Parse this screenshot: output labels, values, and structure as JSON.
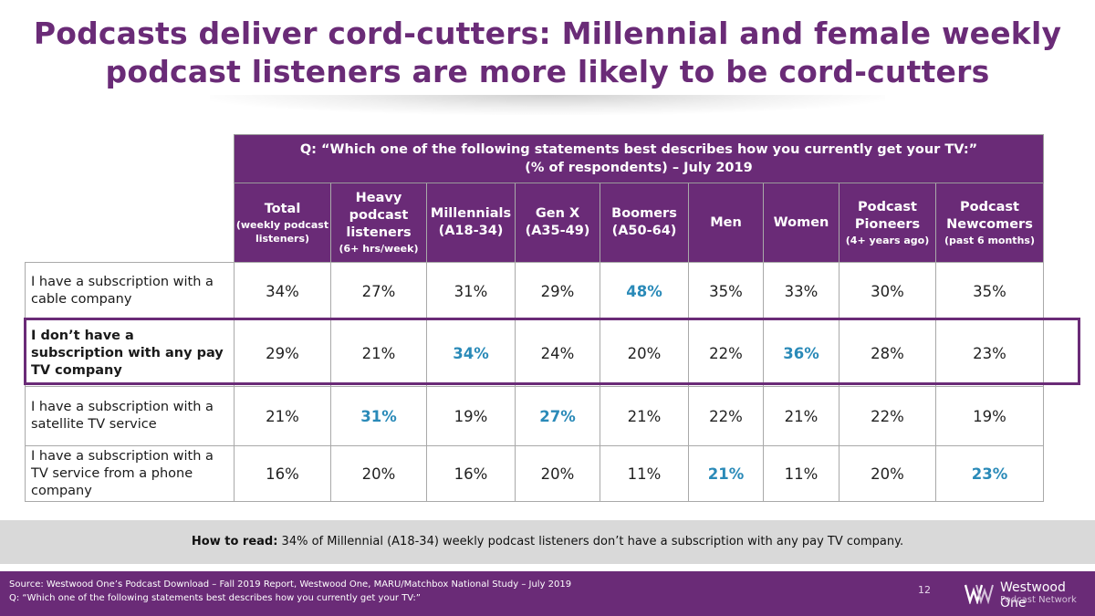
{
  "title": {
    "line1": "Podcasts deliver cord-cutters: Millennial and female weekly",
    "line2": "podcast listeners are more likely to be cord-cutters"
  },
  "question": {
    "line1": "Q: “Which one of the following statements best describes how you currently get your TV:”",
    "line2": "(% of respondents) – July 2019"
  },
  "columns": [
    {
      "label": "Total",
      "sub": "(weekly podcast listeners)"
    },
    {
      "label": "Heavy podcast listeners",
      "sub": "(6+ hrs/week)"
    },
    {
      "label": "Millennials (A18-34)",
      "sub": ""
    },
    {
      "label": "Gen X (A35-49)",
      "sub": ""
    },
    {
      "label": "Boomers (A50-64)",
      "sub": ""
    },
    {
      "label": "Men",
      "sub": ""
    },
    {
      "label": "Women",
      "sub": ""
    },
    {
      "label": "Podcast Pioneers",
      "sub": "(4+ years ago)"
    },
    {
      "label": "Podcast Newcomers",
      "sub": "(past 6 months)"
    }
  ],
  "rows": [
    {
      "label": "I have a subscription with a cable company",
      "values": [
        "34%",
        "27%",
        "31%",
        "29%",
        "48%",
        "35%",
        "33%",
        "30%",
        "35%"
      ]
    },
    {
      "label": "I don’t have a subscription with any pay TV company",
      "values": [
        "29%",
        "21%",
        "34%",
        "24%",
        "20%",
        "22%",
        "36%",
        "28%",
        "23%"
      ]
    },
    {
      "label": "I have a subscription with a satellite TV service",
      "values": [
        "21%",
        "31%",
        "19%",
        "27%",
        "21%",
        "22%",
        "21%",
        "22%",
        "19%"
      ]
    },
    {
      "label": "I have a subscription with a TV service from a phone company",
      "values": [
        "16%",
        "20%",
        "16%",
        "20%",
        "11%",
        "21%",
        "11%",
        "20%",
        "23%"
      ]
    }
  ],
  "how_to_read": {
    "label": "How to read:",
    "text": " 34% of Millennial (A18-34) weekly podcast listeners don’t have a subscription with any pay TV company."
  },
  "footer": {
    "source": "Source: Westwood One’s Podcast Download – Fall 2019 Report, Westwood One, MARU/Matchbox National Study – July 2019",
    "question": "Q: “Which one of the following statements best describes how you currently get your TV:”",
    "page_number": "12",
    "logo_name": "Westwood One",
    "logo_sub": "Podcast Network"
  },
  "colors": {
    "brand_purple": "#6a2b77",
    "highlight_blue": "#2a8ab8",
    "howto_gray": "#d9d9d9"
  }
}
